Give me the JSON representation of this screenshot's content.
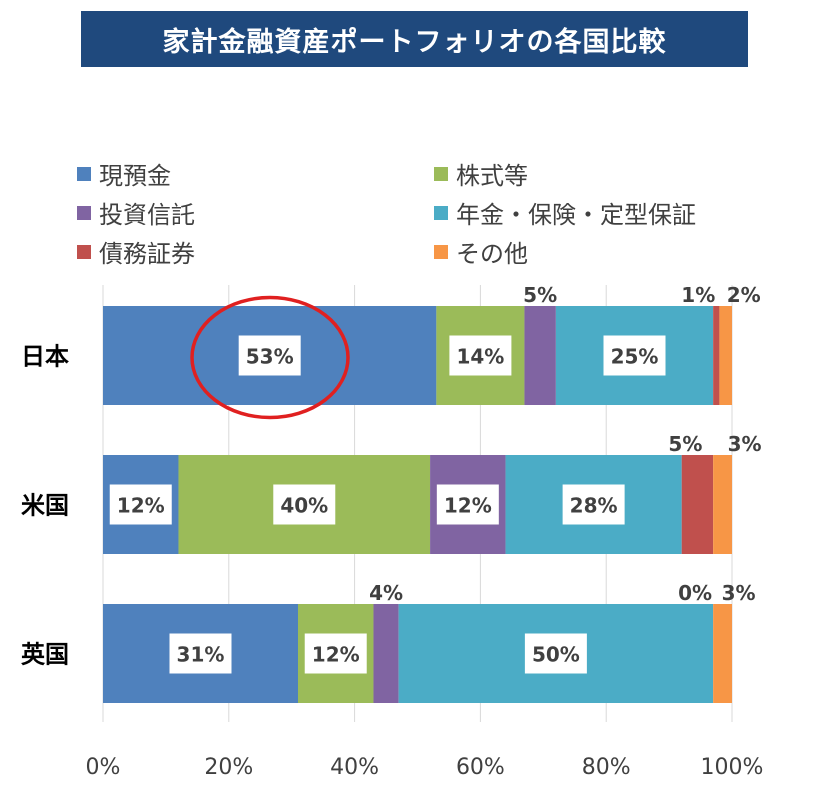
{
  "title": "家計金融資産ポートフォリオの各国比較",
  "chart_data": {
    "type": "bar",
    "orientation": "horizontal",
    "stacked": true,
    "normalized": true,
    "categories": [
      "日本",
      "米国",
      "英国"
    ],
    "series": [
      {
        "name": "現預金",
        "color": "#4f81bd",
        "values": [
          53,
          12,
          31
        ],
        "labels": [
          "53%",
          "12%",
          "31%"
        ]
      },
      {
        "name": "株式等",
        "color": "#9bbb59",
        "values": [
          14,
          40,
          12
        ],
        "labels": [
          "14%",
          "40%",
          "12%"
        ]
      },
      {
        "name": "投資信託",
        "color": "#8064a2",
        "values": [
          5,
          12,
          4
        ],
        "labels": [
          "5%",
          "12%",
          "4%"
        ]
      },
      {
        "name": "年金・保険・定型保証",
        "color": "#4bacc6",
        "values": [
          25,
          28,
          50
        ],
        "labels": [
          "25%",
          "28%",
          "50%"
        ]
      },
      {
        "name": "債務証券",
        "color": "#c0504d",
        "values": [
          1,
          5,
          0
        ],
        "labels": [
          "1%",
          "5%",
          "0%"
        ]
      },
      {
        "name": "その他",
        "color": "#f79646",
        "values": [
          2,
          3,
          3
        ],
        "labels": [
          "2%",
          "3%",
          "3%"
        ]
      }
    ],
    "xticks": [
      "0%",
      "20%",
      "40%",
      "60%",
      "80%",
      "100%"
    ],
    "xlim": [
      0,
      100
    ],
    "grid": true,
    "legend_position": "top",
    "annotation": {
      "type": "circle",
      "category": "日本",
      "series": "現預金",
      "color": "#e02020"
    }
  }
}
